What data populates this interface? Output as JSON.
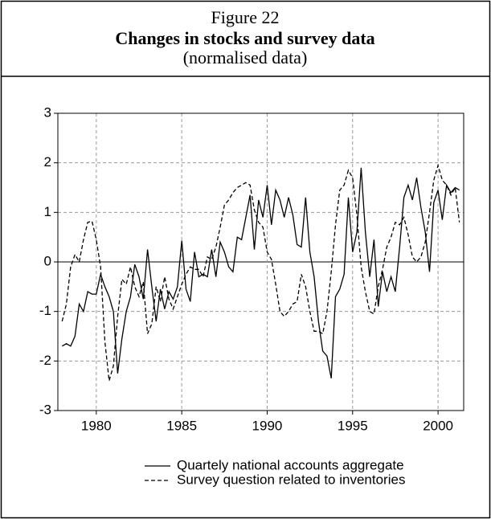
{
  "chart_data": {
    "type": "line",
    "figure_label": "Figure 22",
    "title": "Changes in stocks and survey data",
    "subtitle": "(normalised data)",
    "x": [
      1978,
      1978.25,
      1978.5,
      1978.75,
      1979,
      1979.25,
      1979.5,
      1979.75,
      1980,
      1980.25,
      1980.5,
      1980.75,
      1981,
      1981.25,
      1981.5,
      1981.75,
      1982,
      1982.25,
      1982.5,
      1982.75,
      1983,
      1983.25,
      1983.5,
      1983.75,
      1984,
      1984.25,
      1984.5,
      1984.75,
      1985,
      1985.25,
      1985.5,
      1985.75,
      1986,
      1986.25,
      1986.5,
      1986.75,
      1987,
      1987.25,
      1987.5,
      1987.75,
      1988,
      1988.25,
      1988.5,
      1988.75,
      1989,
      1989.25,
      1989.5,
      1989.75,
      1990,
      1990.25,
      1990.5,
      1990.75,
      1991,
      1991.25,
      1991.5,
      1991.75,
      1992,
      1992.25,
      1992.5,
      1992.75,
      1993,
      1993.25,
      1993.5,
      1993.75,
      1994,
      1994.25,
      1994.5,
      1994.75,
      1995,
      1995.25,
      1995.5,
      1995.75,
      1996,
      1996.25,
      1996.5,
      1996.75,
      1997,
      1997.25,
      1997.5,
      1997.75,
      1998,
      1998.25,
      1998.5,
      1998.75,
      1999,
      1999.25,
      1999.5,
      1999.75,
      2000,
      2000.25,
      2000.5,
      2000.75,
      2001,
      2001.25
    ],
    "series": [
      {
        "name": "Quartely national accounts aggregate",
        "color": "#000000",
        "style": "solid",
        "values": [
          -1.7,
          -1.65,
          -1.7,
          -1.5,
          -0.85,
          -1.0,
          -0.6,
          -0.65,
          -0.65,
          -0.25,
          -0.5,
          -0.7,
          -1.0,
          -2.25,
          -1.55,
          -1.0,
          -0.7,
          -0.05,
          -0.3,
          -0.75,
          0.25,
          -0.5,
          -1.2,
          -0.55,
          -0.95,
          -0.6,
          -0.75,
          -0.5,
          0.43,
          -0.55,
          -0.8,
          0.2,
          -0.3,
          -0.25,
          -0.3,
          0.25,
          -0.3,
          0.4,
          0.2,
          -0.1,
          -0.2,
          0.5,
          0.45,
          0.9,
          1.35,
          0.25,
          1.25,
          0.9,
          1.55,
          0.75,
          1.45,
          1.25,
          0.9,
          1.3,
          0.95,
          0.35,
          0.3,
          1.3,
          0.2,
          -0.3,
          -1.2,
          -1.8,
          -1.9,
          -2.35,
          -0.7,
          -0.55,
          -0.25,
          1.3,
          0.2,
          0.6,
          1.9,
          0.6,
          -0.3,
          0.45,
          -0.9,
          -0.2,
          -0.6,
          -0.3,
          -0.6,
          0.3,
          1.3,
          1.55,
          1.25,
          1.7,
          1.1,
          0.6,
          -0.2,
          1.2,
          1.45,
          0.85,
          1.55,
          1.4,
          1.5,
          1.45
        ]
      },
      {
        "name": "Survey question related to inventories",
        "color": "#000000",
        "style": "dashed",
        "values": [
          -1.2,
          -0.85,
          -0.1,
          0.15,
          0.0,
          0.45,
          0.8,
          0.82,
          0.45,
          -0.1,
          -1.6,
          -2.4,
          -2.1,
          -1.1,
          -0.35,
          -0.45,
          -0.1,
          -0.5,
          -0.7,
          -0.4,
          -1.45,
          -1.25,
          -0.5,
          -0.8,
          -0.3,
          -0.75,
          -0.95,
          -0.7,
          -0.45,
          -0.25,
          -0.1,
          -0.15,
          -0.15,
          -0.3,
          0.1,
          0.05,
          0.3,
          0.7,
          1.15,
          1.25,
          1.4,
          1.5,
          1.55,
          1.6,
          1.55,
          1.05,
          0.8,
          0.7,
          0.2,
          0.05,
          -0.45,
          -1.0,
          -1.1,
          -1.0,
          -0.85,
          -0.8,
          -0.25,
          -0.5,
          -1.0,
          -1.4,
          -1.4,
          -1.45,
          -1.0,
          -0.2,
          0.75,
          1.45,
          1.55,
          1.85,
          1.7,
          0.95,
          -0.1,
          -0.6,
          -1.0,
          -1.05,
          -0.5,
          -0.15,
          0.3,
          0.5,
          0.8,
          0.75,
          0.9,
          0.55,
          0.1,
          0.0,
          0.1,
          0.4,
          1.0,
          1.65,
          1.95,
          1.65,
          1.55,
          1.35,
          1.5,
          0.8
        ]
      }
    ],
    "xlim": [
      1977.75,
      2001.5
    ],
    "xticks": [
      1980,
      1985,
      1990,
      1995,
      2000
    ],
    "ylim": [
      -3,
      3
    ],
    "yticks": [
      -3,
      -2,
      -1,
      0,
      1,
      2,
      3
    ],
    "grid": true
  }
}
